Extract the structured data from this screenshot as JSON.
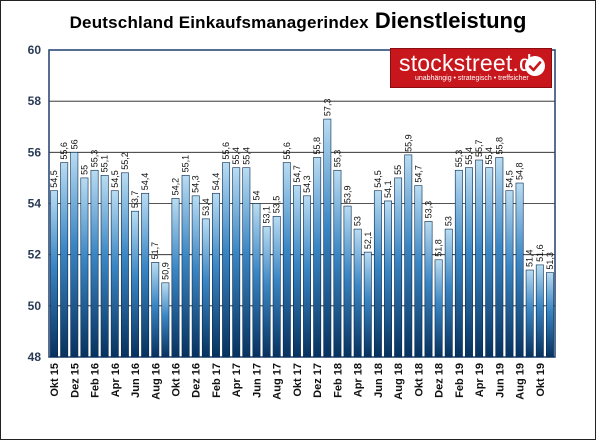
{
  "title_part1": "Deutschland Einkaufsmanagerindex",
  "title_part2": "Dienstleistung",
  "logo": {
    "name": "stockstreet.de",
    "tagline": "unabhängig • strategisch • treffsicher",
    "color": "#c8161d"
  },
  "chart_data": {
    "type": "bar",
    "title": "Deutschland Einkaufsmanagerindex Dienstleistung",
    "ylim": [
      48,
      60
    ],
    "yticks": [
      48,
      50,
      52,
      54,
      56,
      58,
      60
    ],
    "grid": true,
    "categories": [
      "Okt 15",
      "Nov 15",
      "Dez 15",
      "Jan 16",
      "Feb 16",
      "Mär 16",
      "Apr 16",
      "Mai 16",
      "Jun 16",
      "Jul 16",
      "Aug 16",
      "Sep 16",
      "Okt 16",
      "Nov 16",
      "Dez 16",
      "Jan 17",
      "Feb 17",
      "Mär 17",
      "Apr 17",
      "Mai 17",
      "Jun 17",
      "Jul 17",
      "Aug 17",
      "Sep 17",
      "Okt 17",
      "Nov 17",
      "Dez 17",
      "Jan 18",
      "Feb 18",
      "Mär 18",
      "Apr 18",
      "Mai 18",
      "Jun 18",
      "Jul 18",
      "Aug 18",
      "Sep 18",
      "Okt 18",
      "Nov 18",
      "Dez 18",
      "Jan 19",
      "Feb 19",
      "Mär 19",
      "Apr 19",
      "Mai 19",
      "Jun 19",
      "Jul 19",
      "Aug 19",
      "Sep 19",
      "Okt 19",
      "Nov 19"
    ],
    "values": [
      54.5,
      55.6,
      56,
      55,
      55.3,
      55.1,
      54.5,
      55.2,
      53.7,
      54.4,
      51.7,
      50.9,
      54.2,
      55.1,
      54.3,
      53.4,
      54.4,
      55.6,
      55.4,
      55.4,
      54,
      53.1,
      53.5,
      55.6,
      54.7,
      54.3,
      55.8,
      57.3,
      55.3,
      53.9,
      53.0,
      52.1,
      54.5,
      54.1,
      55,
      55.9,
      54.7,
      53.3,
      51.8,
      53,
      55.3,
      55.4,
      55.7,
      55.4,
      55.8,
      54.5,
      54.8,
      51.4,
      51.6,
      51.3
    ],
    "value_labels": [
      "54,5",
      "55,6",
      "56",
      "55",
      "55,3",
      "55,1",
      "54,5",
      "55,2",
      "53,7",
      "54,4",
      "51,7",
      "50,9",
      "54,2",
      "55,1",
      "54,3",
      "53,4",
      "54,4",
      "55,6",
      "55,4",
      "55,4",
      "54",
      "53,1",
      "53,5",
      "55,6",
      "54,7",
      "54,3",
      "55,8",
      "57,3",
      "55,3",
      "53,9",
      "53",
      "52,1",
      "54,5",
      "54,1",
      "55",
      "55,9",
      "54,7",
      "53,3",
      "51,8",
      "53",
      "55,3",
      "55,4",
      "55,7",
      "55,4",
      "55,8",
      "54,5",
      "54,8",
      "51,4",
      "51,6",
      "51,3"
    ],
    "x_tick_labels": [
      "Okt 15",
      "Dez 15",
      "Feb 16",
      "Apr 16",
      "Jun 16",
      "Aug 16",
      "Okt 16",
      "Dez 16",
      "Feb 17",
      "Apr 17",
      "Jun 17",
      "Aug 17",
      "Okt 17",
      "Dez 17",
      "Feb 18",
      "Apr 18",
      "Jun 18",
      "Aug 18",
      "Okt 18",
      "Dez 18",
      "Feb 19",
      "Apr 19",
      "Jun 19",
      "Aug 19",
      "Okt 19"
    ],
    "colors": {
      "bar_dark": "#07325f",
      "bar_mid": "#3a86c4",
      "bar_light": "#b9dcf2",
      "plot_border": "#1f3f6e",
      "grid": "#1a1a1a",
      "axis_text": "#2a3b55"
    }
  }
}
